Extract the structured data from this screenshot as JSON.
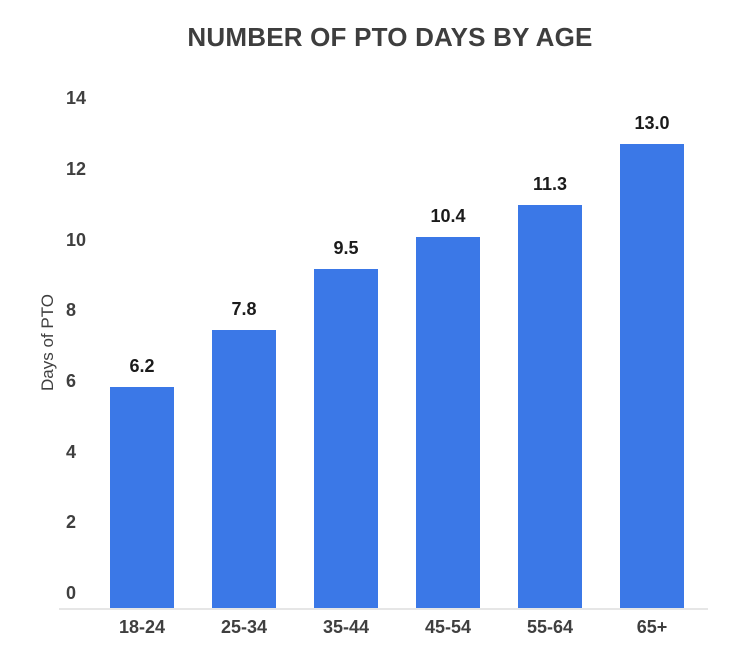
{
  "chart_data": {
    "type": "bar",
    "title": "NUMBER OF PTO DAYS BY AGE",
    "categories": [
      "18-24",
      "25-34",
      "35-44",
      "45-54",
      "55-64",
      "65+"
    ],
    "values": [
      6.2,
      7.8,
      9.5,
      10.4,
      11.3,
      13.0
    ],
    "value_labels": [
      "6.2",
      "7.8",
      "9.5",
      "10.4",
      "11.3",
      "13.0"
    ],
    "xlabel": "",
    "ylabel": "Days of PTO",
    "ylim": [
      0,
      14
    ],
    "yticks": [
      0,
      2,
      4,
      6,
      8,
      10,
      12,
      14
    ],
    "grid": false,
    "legend_position": "none",
    "colors": {
      "bar": "#3b78e7",
      "title": "#3e3e3e",
      "axis_labels": "#3f3f3f",
      "data_labels": "#1b1b1b",
      "axis_line": "#e6e6e6",
      "background": "#ffffff"
    }
  }
}
